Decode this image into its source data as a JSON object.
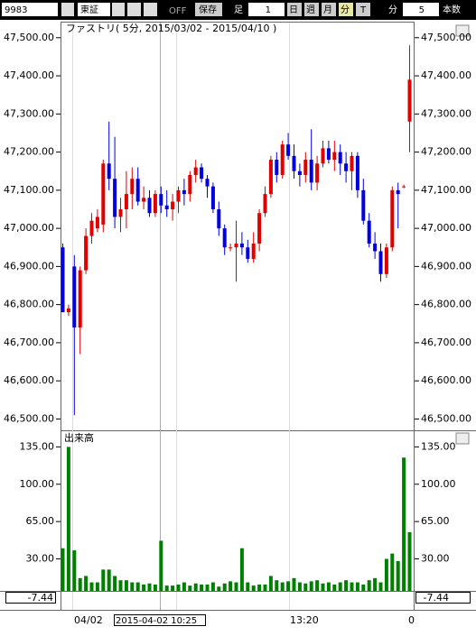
{
  "toolbar": {
    "code": "9983",
    "market": "東証",
    "off": "OFF",
    "save": "保存",
    "ashi": "足",
    "ashi_count": "1",
    "day": "日",
    "week": "週",
    "month": "月",
    "minute": "分",
    "tick": "T",
    "minute2": "分",
    "bars": "5",
    "bars_label": "本数"
  },
  "x_axis": {
    "labels": [
      "04/02",
      "13:20",
      "0"
    ],
    "cursor": "2015-04-02  10:25"
  },
  "indicator": {
    "left": "-7.44",
    "right": "-7.44"
  },
  "chart_data": [
    {
      "type": "candlestick",
      "title": "ファストリ( 5分, 2015/03/02 - 2015/04/10 )",
      "up_color": "#e00000",
      "down_color": "#0000e0",
      "series": {
        "open": [
          46950,
          46780,
          46900,
          46740,
          46890,
          46980,
          47000,
          47010,
          47170,
          47130,
          47030,
          47050,
          47090,
          47130,
          47070,
          47080,
          47040,
          47090,
          47060,
          47050,
          47070,
          47100,
          47090,
          47140,
          47160,
          47130,
          47110,
          47050,
          47000,
          46950,
          46950,
          46960,
          46950,
          46920,
          46960,
          47040,
          47090,
          47180,
          47140,
          47220,
          47190,
          47150,
          47140,
          47180,
          47120,
          47170,
          47210,
          47180,
          47200,
          47170,
          47150,
          47190,
          47100,
          47020,
          46960,
          46940,
          46880,
          46950,
          47100,
          47110,
          47280
        ],
        "high": [
          46960,
          46800,
          46930,
          46900,
          47000,
          47040,
          47050,
          47180,
          47280,
          47240,
          47080,
          47150,
          47160,
          47160,
          47110,
          47100,
          47100,
          47110,
          47100,
          47090,
          47110,
          47130,
          47150,
          47180,
          47170,
          47140,
          47120,
          47070,
          47010,
          46960,
          47020,
          46990,
          46970,
          46990,
          47050,
          47110,
          47190,
          47200,
          47230,
          47250,
          47220,
          47170,
          47200,
          47260,
          47190,
          47230,
          47230,
          47230,
          47220,
          47200,
          47200,
          47200,
          47130,
          47040,
          46990,
          46960,
          46960,
          47110,
          47120,
          47115,
          47480
        ],
        "low": [
          46780,
          46770,
          46510,
          46670,
          46880,
          46960,
          46990,
          46990,
          47100,
          47000,
          46990,
          47000,
          47050,
          47060,
          47050,
          47030,
          47030,
          47040,
          47030,
          47020,
          47040,
          47060,
          47070,
          47120,
          47120,
          47080,
          47040,
          46980,
          46930,
          46940,
          46860,
          46930,
          46910,
          46910,
          46940,
          47030,
          47080,
          47120,
          47130,
          47180,
          47130,
          47110,
          47120,
          47100,
          47100,
          47160,
          47170,
          47150,
          47140,
          47120,
          47100,
          47080,
          47010,
          46950,
          46920,
          46860,
          46870,
          46940,
          47000,
          47105,
          47200
        ],
        "close": [
          46780,
          46790,
          46740,
          46890,
          46980,
          47020,
          47030,
          47170,
          47130,
          47030,
          47050,
          47090,
          47130,
          47070,
          47080,
          47040,
          47090,
          47060,
          47050,
          47070,
          47100,
          47090,
          47140,
          47160,
          47130,
          47110,
          47050,
          47000,
          46950,
          46950,
          46960,
          46950,
          46920,
          46960,
          47040,
          47090,
          47180,
          47140,
          47220,
          47190,
          47150,
          47140,
          47180,
          47120,
          47170,
          47210,
          47180,
          47200,
          47170,
          47150,
          47190,
          47100,
          47020,
          46960,
          46940,
          46880,
          46950,
          47100,
          47090,
          47110,
          47390
        ]
      },
      "ylim": [
        46475,
        47535
      ],
      "yticks": [
        {
          "value": 46500,
          "label": "46,500.00"
        },
        {
          "value": 46600,
          "label": "46,600.00"
        },
        {
          "value": 46700,
          "label": "46,700.00"
        },
        {
          "value": 46800,
          "label": "46,800.00"
        },
        {
          "value": 46900,
          "label": "46,900.00"
        },
        {
          "value": 47000,
          "label": "47,000.00"
        },
        {
          "value": 47100,
          "label": "47,100.00"
        },
        {
          "value": 47200,
          "label": "47,200.00"
        },
        {
          "value": 47300,
          "label": "47,300.00"
        },
        {
          "value": 47400,
          "label": "47,400.00"
        },
        {
          "value": 47500,
          "label": "47,500.00"
        }
      ]
    },
    {
      "type": "bar",
      "title": "出来高",
      "color": "#008000",
      "values": [
        40,
        135,
        38,
        12,
        14,
        8,
        8,
        20,
        20,
        14,
        10,
        10,
        8,
        8,
        6,
        7,
        6,
        47,
        5,
        5,
        6,
        8,
        5,
        7,
        6,
        6,
        8,
        4,
        7,
        9,
        8,
        40,
        8,
        5,
        6,
        6,
        14,
        10,
        8,
        9,
        12,
        8,
        7,
        9,
        10,
        7,
        8,
        6,
        8,
        10,
        8,
        8,
        6,
        10,
        12,
        8,
        30,
        35,
        28,
        125,
        55
      ],
      "ylim": [
        0,
        148
      ],
      "yticks": [
        {
          "value": 30,
          "label": "30.00"
        },
        {
          "value": 65,
          "label": "65.00"
        },
        {
          "value": 100,
          "label": "100.00"
        },
        {
          "value": 135,
          "label": "135.00"
        }
      ]
    }
  ]
}
